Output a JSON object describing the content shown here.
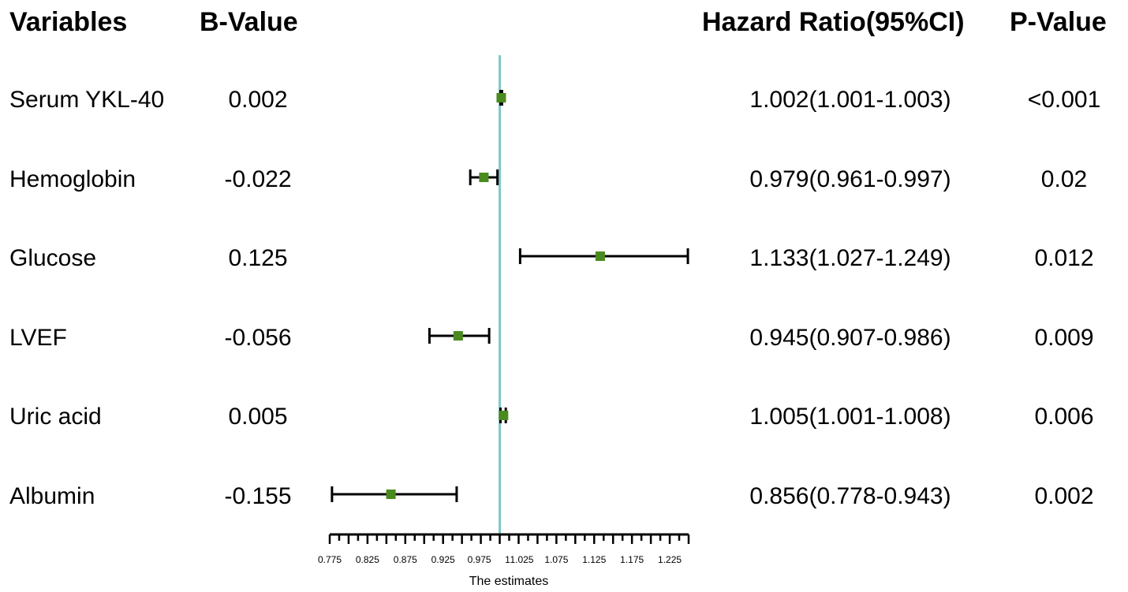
{
  "headers": {
    "variables": "Variables",
    "b_value": "B-Value",
    "hazard_ratio": "Hazard Ratio(95%CI)",
    "p_value": "P-Value"
  },
  "rows": [
    {
      "variable": "Serum YKL-40",
      "b_value": "0.002",
      "hr_ci": "1.002(1.001-1.003)",
      "p_value": "<0.001"
    },
    {
      "variable": "Hemoglobin",
      "b_value": "-0.022",
      "hr_ci": "0.979(0.961-0.997)",
      "p_value": "0.02"
    },
    {
      "variable": "Glucose",
      "b_value": "0.125",
      "hr_ci": "1.133(1.027-1.249)",
      "p_value": "0.012"
    },
    {
      "variable": "LVEF",
      "b_value": "-0.056",
      "hr_ci": "0.945(0.907-0.986)",
      "p_value": "0.009"
    },
    {
      "variable": "Uric acid",
      "b_value": "0.005",
      "hr_ci": "1.005(1.001-1.008)",
      "p_value": "0.006"
    },
    {
      "variable": "Albumin",
      "b_value": "-0.155",
      "hr_ci": "0.856(0.778-0.943)",
      "p_value": "0.002"
    }
  ],
  "chart_data": {
    "type": "forest",
    "xlabel": "The estimates",
    "xlim": [
      0.775,
      1.25
    ],
    "reference_line": 1,
    "tick_labels": [
      "0.775",
      "0.825",
      "0.875",
      "0.925",
      "0.975",
      "1",
      "1.025",
      "1.075",
      "1.125",
      "1.175",
      "1.225"
    ],
    "series": [
      {
        "values": [
          {
            "label": "Serum YKL-40",
            "estimate": 1.002,
            "lower": 1.001,
            "upper": 1.003
          },
          {
            "label": "Hemoglobin",
            "estimate": 0.979,
            "lower": 0.961,
            "upper": 0.997
          },
          {
            "label": "Glucose",
            "estimate": 1.133,
            "lower": 1.027,
            "upper": 1.249
          },
          {
            "label": "LVEF",
            "estimate": 0.945,
            "lower": 0.907,
            "upper": 0.986
          },
          {
            "label": "Uric acid",
            "estimate": 1.005,
            "lower": 1.001,
            "upper": 1.008
          },
          {
            "label": "Albumin",
            "estimate": 0.856,
            "lower": 0.778,
            "upper": 0.943
          }
        ]
      }
    ],
    "colors": {
      "marker": "#4a8a1f",
      "reference_line": "#7fc8c8",
      "whisker": "#000000"
    }
  }
}
